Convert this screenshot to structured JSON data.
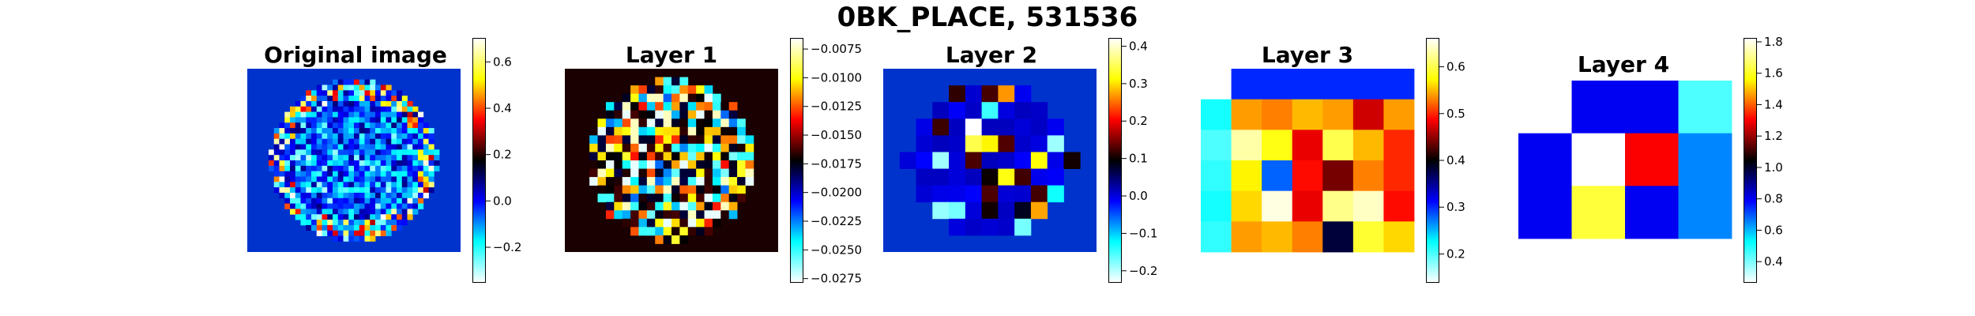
{
  "figure": {
    "title": "0BK_PLACE, 531536"
  },
  "colors": {
    "colormap_name": "jet-black (cyan-blue-black-red-yellow-white)",
    "stops": [
      "#ffffff",
      "#00ffff",
      "#0000ff",
      "#000000",
      "#ff0000",
      "#ffff00",
      "#ffffff"
    ],
    "background_blue": "#0033cc",
    "background_dark": "#1a0000"
  },
  "chart_data": [
    {
      "type": "heatmap",
      "title": "Original image",
      "shape": "circular blob of noisy pixels on a flat background",
      "grid": [
        40,
        34
      ],
      "vmin": -0.35,
      "vmax": 0.7,
      "background_value": 0.0,
      "colorbar_ticks": [
        {
          "value": -0.2,
          "label": "−0.2"
        },
        {
          "value": 0.0,
          "label": "0.0"
        },
        {
          "value": 0.2,
          "label": "0.2"
        },
        {
          "value": 0.4,
          "label": "0.4"
        },
        {
          "value": 0.6,
          "label": "0.6"
        }
      ]
    },
    {
      "type": "heatmap",
      "title": "Layer 1",
      "shape": "circular blob of noisy pixels on a flat background",
      "grid": [
        26,
        22
      ],
      "vmin": -0.0278,
      "vmax": -0.0066,
      "background_value": -0.0172,
      "colorbar_ticks": [
        {
          "value": -0.0075,
          "label": "−0.0075"
        },
        {
          "value": -0.01,
          "label": "−0.0100"
        },
        {
          "value": -0.0125,
          "label": "−0.0125"
        },
        {
          "value": -0.015,
          "label": "−0.0150"
        },
        {
          "value": -0.0175,
          "label": "−0.0175"
        },
        {
          "value": -0.02,
          "label": "−0.0200"
        },
        {
          "value": -0.0225,
          "label": "−0.0225"
        },
        {
          "value": -0.025,
          "label": "−0.0250"
        },
        {
          "value": -0.0275,
          "label": "−0.0275"
        }
      ]
    },
    {
      "type": "heatmap",
      "title": "Layer 2",
      "shape": "circular blob of pixels on a flat background",
      "grid": [
        13,
        11
      ],
      "vmin": -0.23,
      "vmax": 0.42,
      "background_value": 0.0,
      "colorbar_ticks": [
        {
          "value": -0.2,
          "label": "−0.2"
        },
        {
          "value": -0.1,
          "label": "−0.1"
        },
        {
          "value": 0.0,
          "label": "0.0"
        },
        {
          "value": 0.1,
          "label": "0.1"
        },
        {
          "value": 0.2,
          "label": "0.2"
        },
        {
          "value": 0.3,
          "label": "0.3"
        },
        {
          "value": 0.4,
          "label": "0.4"
        }
      ]
    },
    {
      "type": "heatmap",
      "title": "Layer 3",
      "vmin": 0.14,
      "vmax": 0.66,
      "colorbar_ticks": [
        {
          "value": 0.2,
          "label": "0.2"
        },
        {
          "value": 0.3,
          "label": "0.3"
        },
        {
          "value": 0.4,
          "label": "0.4"
        },
        {
          "value": 0.5,
          "label": "0.5"
        },
        {
          "value": 0.6,
          "label": "0.6"
        }
      ],
      "cells": [
        [
          null,
          0.3,
          0.3,
          0.3,
          0.3,
          0.3,
          0.3
        ],
        [
          0.22,
          0.54,
          0.53,
          0.55,
          0.54,
          0.47,
          0.54
        ],
        [
          0.2,
          0.63,
          0.58,
          0.48,
          0.6,
          0.55,
          0.5
        ],
        [
          0.21,
          0.57,
          0.28,
          0.49,
          0.44,
          0.53,
          0.5
        ],
        [
          0.22,
          0.56,
          0.65,
          0.48,
          0.62,
          0.64,
          0.49
        ],
        [
          0.21,
          0.54,
          0.55,
          0.53,
          0.38,
          0.59,
          0.56
        ]
      ]
    },
    {
      "type": "heatmap",
      "title": "Layer 4",
      "vmin": 0.27,
      "vmax": 1.82,
      "colorbar_ticks": [
        {
          "value": 0.4,
          "label": "0.4"
        },
        {
          "value": 0.6,
          "label": "0.6"
        },
        {
          "value": 0.8,
          "label": "0.8"
        },
        {
          "value": 1.0,
          "label": "1.0"
        },
        {
          "value": 1.2,
          "label": "1.2"
        },
        {
          "value": 1.4,
          "label": "1.4"
        },
        {
          "value": 1.6,
          "label": "1.6"
        },
        {
          "value": 1.8,
          "label": "1.8"
        }
      ],
      "cells": [
        [
          null,
          0.8,
          0.8,
          0.45
        ],
        [
          0.8,
          1.82,
          1.3,
          0.65
        ],
        [
          0.8,
          1.62,
          0.8,
          0.65
        ]
      ]
    }
  ]
}
